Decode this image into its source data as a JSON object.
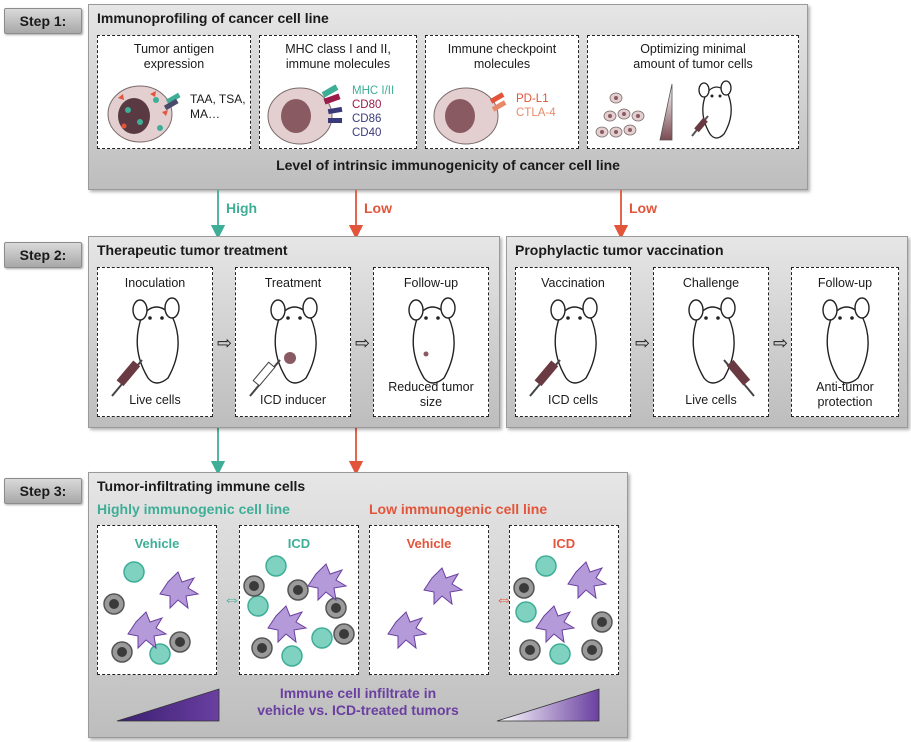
{
  "colors": {
    "teal": "#3fae97",
    "red": "#e2553a",
    "purple": "#6a3fa0",
    "dark": "#1a1a1a",
    "cell": "#e3cfcf",
    "nucleus": "#8a5a63",
    "lymph": "#8a8a8a",
    "dc": "#b49ad8"
  },
  "step1": {
    "label": "Step 1:",
    "title": "Immunoprofiling of cancer cell line",
    "boxes": [
      {
        "title": "Tumor antigen\nexpression",
        "text": "TAA, TSA,\nMA…"
      },
      {
        "title": "MHC class I and II,\nimmune molecules",
        "markers": [
          "MHC I/II",
          "CD80",
          "CD86",
          "CD40"
        ]
      },
      {
        "title": "Immune checkpoint\nmolecules",
        "markers": [
          "PD-L1",
          "CTLA-4"
        ]
      },
      {
        "title": "Optimizing minimal\namount of tumor cells"
      }
    ],
    "footer": "Level of intrinsic immunogenicity of cancer cell line"
  },
  "arrows": {
    "high": "High",
    "low": "Low",
    "low2": "Low"
  },
  "step2": {
    "label": "Step 2:",
    "therapeutic": {
      "title": "Therapeutic tumor treatment",
      "boxes": [
        {
          "title": "Inoculation",
          "foot": "Live cells"
        },
        {
          "title": "Treatment",
          "foot": "ICD inducer"
        },
        {
          "title": "Follow-up",
          "foot": "Reduced tumor\nsize"
        }
      ]
    },
    "prophylactic": {
      "title": "Prophylactic tumor vaccination",
      "boxes": [
        {
          "title": "Vaccination",
          "foot": "ICD cells"
        },
        {
          "title": "Challenge",
          "foot": "Live cells"
        },
        {
          "title": "Follow-up",
          "foot": "Anti-tumor\nprotection"
        }
      ]
    }
  },
  "step3": {
    "label": "Step 3:",
    "title": "Tumor-infiltrating immune cells",
    "high_label": "Highly immunogenic cell line",
    "low_label": "Low immunogenic cell line",
    "boxes": [
      {
        "title": "Vehicle"
      },
      {
        "title": "ICD"
      },
      {
        "title": "Vehicle"
      },
      {
        "title": "ICD"
      }
    ],
    "footer": "Immune cell infiltrate in\nvehicle vs. ICD-treated tumors"
  }
}
